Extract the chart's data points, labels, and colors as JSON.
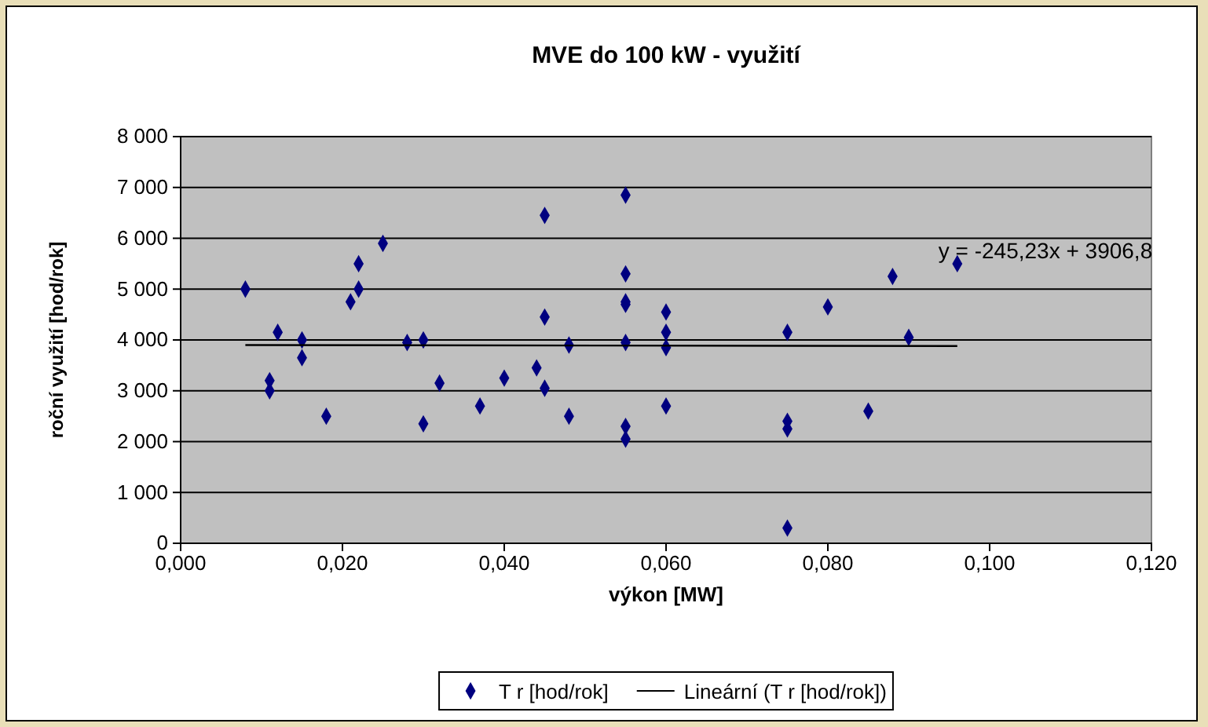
{
  "chart_data": {
    "type": "scatter",
    "title": "MVE do 100 kW - využití",
    "xlabel": "výkon [MW]",
    "ylabel": "roční využití [hod/rok]",
    "xlim": [
      0,
      0.12
    ],
    "xticks": [
      {
        "value": 0,
        "label": "0,000"
      },
      {
        "value": 0.02,
        "label": "0,020"
      },
      {
        "value": 0.04,
        "label": "0,040"
      },
      {
        "value": 0.06,
        "label": "0,060"
      },
      {
        "value": 0.08,
        "label": "0,080"
      },
      {
        "value": 0.1,
        "label": "0,100"
      },
      {
        "value": 0.12,
        "label": "0,120"
      }
    ],
    "ylim": [
      0,
      8000
    ],
    "yticks": [
      {
        "value": 0,
        "label": "0"
      },
      {
        "value": 1000,
        "label": "1 000"
      },
      {
        "value": 2000,
        "label": "2 000"
      },
      {
        "value": 3000,
        "label": "3 000"
      },
      {
        "value": 4000,
        "label": "4 000"
      },
      {
        "value": 5000,
        "label": "5 000"
      },
      {
        "value": 6000,
        "label": "6 000"
      },
      {
        "value": 7000,
        "label": "7 000"
      },
      {
        "value": 8000,
        "label": "8 000"
      }
    ],
    "grid": "y",
    "legend": "bottom",
    "annotations": [
      "y = -245,23x + 3906,8"
    ],
    "series": [
      {
        "name": "T r [hod/rok]",
        "marker": "diamond",
        "color": "#000080",
        "x": [
          0.008,
          0.011,
          0.011,
          0.012,
          0.015,
          0.015,
          0.018,
          0.021,
          0.022,
          0.022,
          0.025,
          0.028,
          0.03,
          0.03,
          0.032,
          0.037,
          0.04,
          0.044,
          0.045,
          0.045,
          0.045,
          0.048,
          0.048,
          0.055,
          0.055,
          0.055,
          0.055,
          0.055,
          0.055,
          0.055,
          0.06,
          0.06,
          0.06,
          0.06,
          0.075,
          0.075,
          0.075,
          0.075,
          0.08,
          0.085,
          0.088,
          0.09,
          0.096
        ],
        "values": [
          5000,
          3200,
          3000,
          4150,
          4000,
          3650,
          2500,
          4750,
          5500,
          5000,
          5900,
          3950,
          4000,
          2350,
          3150,
          2700,
          3250,
          3450,
          6450,
          4450,
          3050,
          3900,
          2500,
          6850,
          5300,
          4750,
          4700,
          3950,
          2300,
          2050,
          4550,
          4150,
          3850,
          2700,
          4150,
          2400,
          2250,
          300,
          4650,
          2600,
          5250,
          4050,
          5500
        ]
      },
      {
        "name": "Lineární (T r [hod/rok])",
        "type": "line",
        "marker": "none",
        "color": "#000000",
        "x": [
          0.008,
          0.096
        ],
        "values": [
          3900,
          3880
        ]
      }
    ]
  }
}
